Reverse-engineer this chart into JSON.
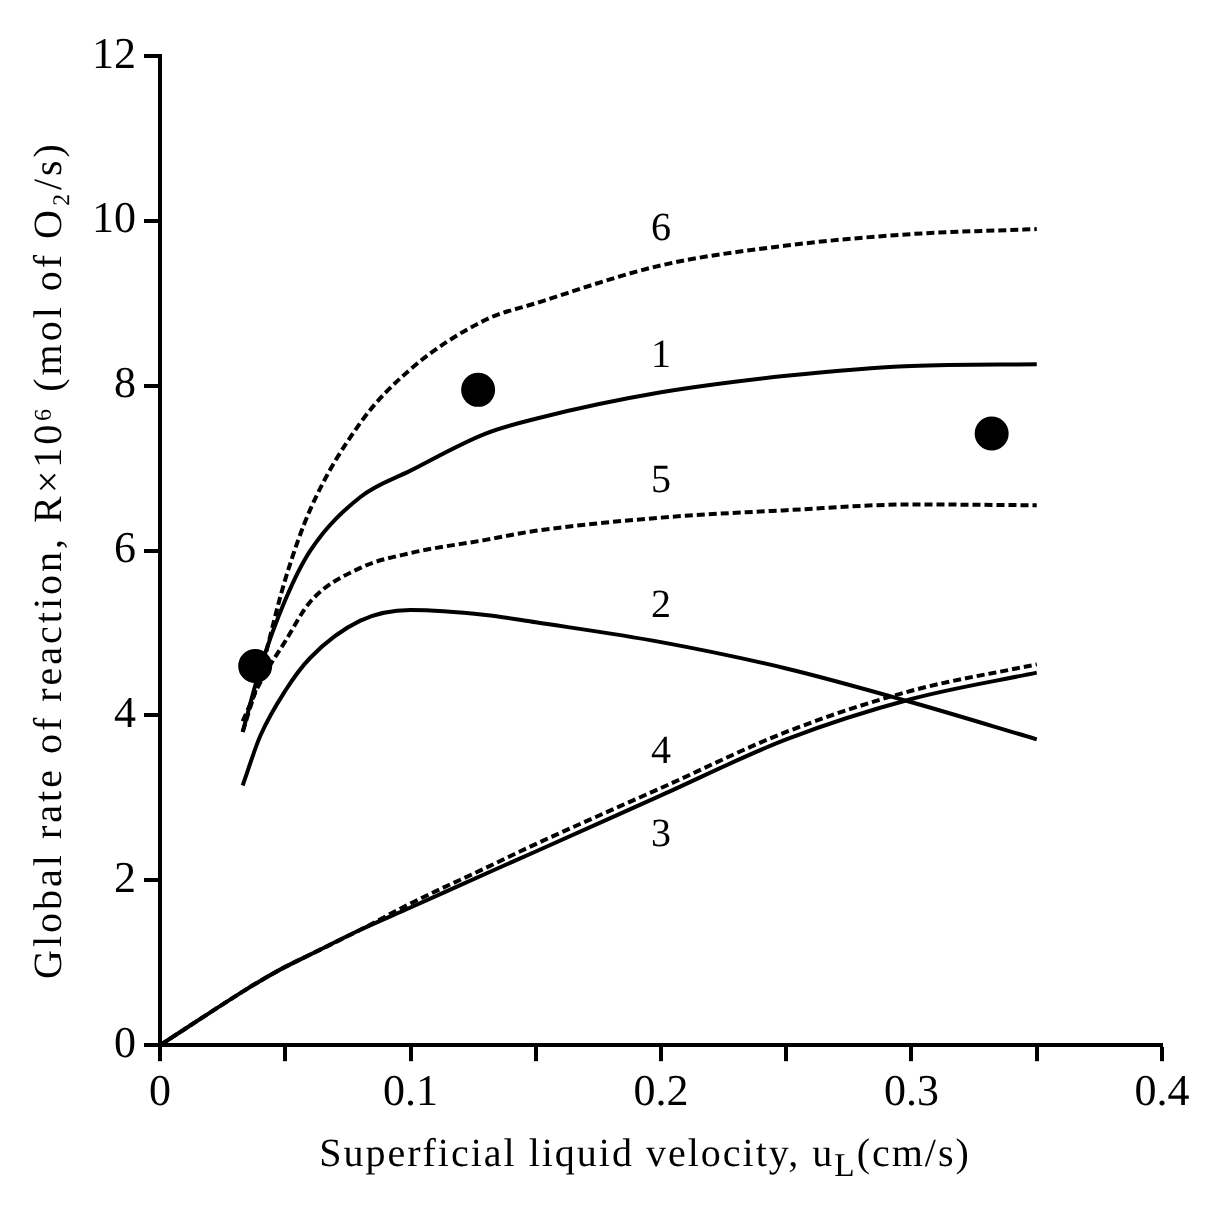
{
  "chart_data": {
    "type": "line",
    "xlabel": "Superficial liquid velocity, u$_{L}$(cm/s)",
    "ylabel": "Global rate of reaction, R×10⁶ (mol of O₂/s)",
    "x": [
      0,
      0.033,
      0.04,
      0.05,
      0.06,
      0.08,
      0.1,
      0.13,
      0.15,
      0.2,
      0.25,
      0.3,
      0.35
    ],
    "series": [
      {
        "name": "1",
        "color": "#000000",
        "line_style": "solid",
        "values": [
          null,
          3.8,
          4.57,
          5.4,
          6.0,
          6.65,
          6.97,
          7.42,
          7.6,
          7.92,
          8.12,
          8.24,
          8.26
        ]
      },
      {
        "name": "2",
        "color": "#000000",
        "line_style": "solid",
        "values": [
          null,
          3.15,
          3.75,
          4.3,
          4.7,
          5.15,
          5.28,
          5.22,
          5.13,
          4.89,
          4.57,
          4.16,
          3.71
        ]
      },
      {
        "name": "3",
        "color": "#000000",
        "line_style": "solid",
        "values": [
          0,
          0.65,
          0.78,
          0.95,
          1.1,
          1.4,
          1.67,
          2.08,
          2.35,
          3.03,
          3.71,
          4.2,
          4.52
        ]
      },
      {
        "name": "4",
        "color": "#000000",
        "line_style": "dashed",
        "values": [
          0,
          0.65,
          0.78,
          0.95,
          1.1,
          1.4,
          1.72,
          2.15,
          2.44,
          3.12,
          3.8,
          4.3,
          4.62
        ]
      },
      {
        "name": "5",
        "color": "#000000",
        "line_style": "dashed",
        "values": [
          null,
          3.93,
          4.4,
          4.9,
          5.38,
          5.79,
          5.97,
          6.13,
          6.24,
          6.4,
          6.49,
          6.56,
          6.55
        ]
      },
      {
        "name": "6",
        "color": "#000000",
        "line_style": "dashed",
        "values": [
          null,
          3.8,
          4.5,
          5.65,
          6.5,
          7.55,
          8.2,
          8.8,
          9.0,
          9.46,
          9.7,
          9.84,
          9.9
        ]
      },
      {
        "type": "scatter",
        "color": "#000000",
        "marker": "circle",
        "x": [
          0.038,
          0.127,
          0.332
        ],
        "values": [
          4.6,
          7.95,
          7.42
        ]
      }
    ],
    "xlim": [
      0,
      0.4
    ],
    "xticks": [
      0,
      {
        "value": 0.05,
        "label": null
      },
      0.1,
      {
        "value": 0.15,
        "label": null
      },
      0.2,
      {
        "value": 0.25,
        "label": null
      },
      0.3,
      {
        "value": 0.35,
        "label": null
      },
      0.4
    ],
    "ylim": [
      0,
      12
    ],
    "yticks": [
      0,
      2,
      4,
      6,
      8,
      10,
      12
    ],
    "marker": "none",
    "grid": false,
    "legend": false
  }
}
